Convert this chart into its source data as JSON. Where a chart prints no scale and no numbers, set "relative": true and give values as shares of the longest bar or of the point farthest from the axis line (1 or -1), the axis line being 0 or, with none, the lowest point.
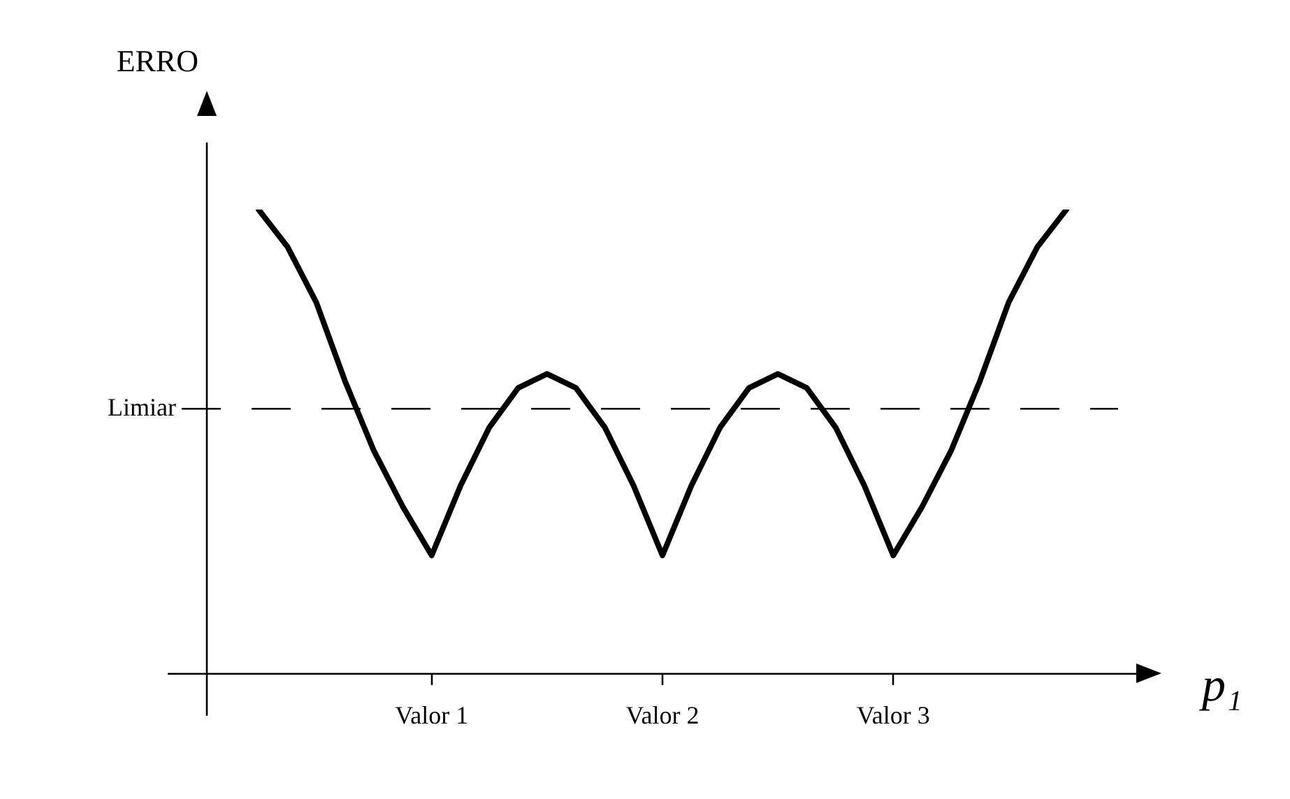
{
  "chart_data": {
    "type": "line",
    "relative": true,
    "ylabel": "ERRO",
    "xlabel": "p₁",
    "categories": [
      null,
      null,
      null,
      null,
      null,
      null,
      "Valor 1",
      null,
      null,
      null,
      null,
      null,
      null,
      null,
      "Valor 2",
      null,
      null,
      null,
      null,
      null,
      null,
      null,
      "Valor 3",
      null,
      null,
      null,
      null,
      null,
      null
    ],
    "series": [
      {
        "color": "#000000",
        "values": [
          1,
          0.92,
          0.8,
          0.63,
          0.48,
          0.36,
          0.255,
          0.405,
          0.531,
          0.616,
          0.646,
          0.616,
          0.531,
          0.405,
          0.255,
          0.405,
          0.531,
          0.616,
          0.646,
          0.616,
          0.531,
          0.405,
          0.255,
          0.36,
          0.48,
          0.63,
          0.8,
          0.92,
          1
        ]
      }
    ],
    "ref_lines": [
      {
        "axis": "y",
        "value": 0.571,
        "label": "Limiar",
        "color": "#000000",
        "line_style": "dashed"
      }
    ],
    "legend": false,
    "marker": "none",
    "line_style": "solid"
  }
}
